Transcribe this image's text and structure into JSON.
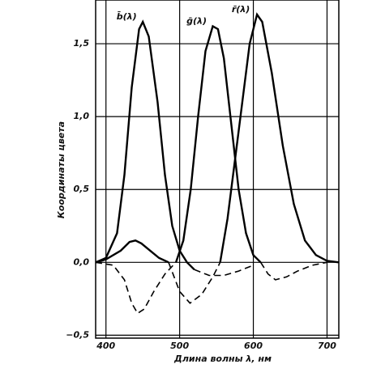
{
  "chart_data": {
    "type": "line",
    "ylabel": "Координаты цвета",
    "xlabel": "Длина волны λ, нм",
    "xlim": [
      386,
      716
    ],
    "ylim": [
      -0.52,
      1.8
    ],
    "xticks": [
      400,
      500,
      600,
      700
    ],
    "yticks": [
      {
        "value": -0.5,
        "label": "−0,5"
      },
      {
        "value": 0,
        "label": "0,0"
      },
      {
        "value": 0.5,
        "label": "0,5"
      },
      {
        "value": 1.0,
        "label": "1,0"
      },
      {
        "value": 1.5,
        "label": "1,5"
      }
    ],
    "grid": true,
    "series": [
      {
        "name": "b̄(λ)",
        "color": "#000000",
        "dash": false,
        "x": [
          386,
          400,
          415,
          425,
          435,
          445,
          450,
          458,
          470,
          480,
          490,
          500,
          510,
          520
        ],
        "values": [
          0.0,
          0.03,
          0.2,
          0.6,
          1.2,
          1.6,
          1.65,
          1.55,
          1.1,
          0.6,
          0.25,
          0.08,
          0.0,
          -0.05
        ]
      },
      {
        "color": "#000000",
        "dash": true,
        "x": [
          520,
          540,
          560,
          580,
          600
        ],
        "values": [
          -0.05,
          -0.09,
          -0.09,
          -0.06,
          -0.02
        ]
      },
      {
        "color": "#000000",
        "dash": true,
        "x": [
          386,
          410,
          425,
          435,
          443,
          452,
          465,
          480,
          495
        ],
        "values": [
          0.0,
          -0.02,
          -0.12,
          -0.28,
          -0.35,
          -0.32,
          -0.2,
          -0.08,
          0.0
        ]
      },
      {
        "name": "ḡ(λ)",
        "color": "#000000",
        "dash": false,
        "x": [
          495,
          505,
          515,
          525,
          535,
          545,
          552,
          560,
          570,
          580,
          590,
          600,
          610
        ],
        "values": [
          0.0,
          0.15,
          0.5,
          1.0,
          1.45,
          1.62,
          1.6,
          1.4,
          0.95,
          0.5,
          0.2,
          0.05,
          0.0
        ]
      },
      {
        "color": "#000000",
        "dash": true,
        "x": [
          610,
          620,
          630,
          645,
          660,
          680,
          700
        ],
        "values": [
          0.0,
          -0.08,
          -0.12,
          -0.1,
          -0.06,
          -0.02,
          0.0
        ]
      },
      {
        "color": "#000000",
        "dash": false,
        "x": [
          386,
          400,
          420,
          432,
          440,
          448,
          460,
          472,
          485
        ],
        "values": [
          0.0,
          0.02,
          0.08,
          0.14,
          0.15,
          0.13,
          0.08,
          0.03,
          0.0
        ]
      },
      {
        "color": "#000000",
        "dash": true,
        "x": [
          485,
          500,
          514,
          530,
          545,
          555
        ],
        "values": [
          0.0,
          -0.2,
          -0.28,
          -0.22,
          -0.1,
          0.0
        ]
      },
      {
        "name": "r̄(λ)",
        "color": "#000000",
        "dash": false,
        "x": [
          555,
          565,
          580,
          595,
          605,
          612,
          625,
          640,
          655,
          670,
          685,
          700,
          716
        ],
        "values": [
          0.0,
          0.3,
          0.9,
          1.5,
          1.7,
          1.65,
          1.3,
          0.8,
          0.4,
          0.15,
          0.05,
          0.01,
          0.0
        ]
      }
    ]
  }
}
